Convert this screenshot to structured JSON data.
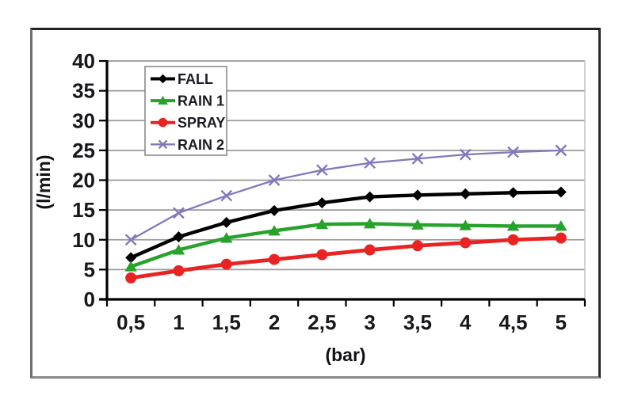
{
  "colors": {
    "gridline": "#9a9a9a",
    "axis": "#000000",
    "plot_right_edge": "#c6c6c6",
    "tick_text": "#18181c",
    "legend_border": "#8c8c8c",
    "legend_background": "#ffffff",
    "frame_border_dark": "#222222",
    "frame_border_light": "#8a8a8a"
  },
  "chart_data": {
    "type": "line",
    "title": "",
    "xlabel": "(bar)",
    "ylabel": "(l/min)",
    "x": [
      0.5,
      1,
      1.5,
      2,
      2.5,
      3,
      3.5,
      4,
      4.5,
      5
    ],
    "x_tick_labels": [
      "0,5",
      "1",
      "1,5",
      "2",
      "2,5",
      "3",
      "3,5",
      "4",
      "4,5",
      "5"
    ],
    "y_ticks": [
      0,
      5,
      10,
      15,
      20,
      25,
      30,
      35,
      40
    ],
    "ylim": [
      0,
      40
    ],
    "grid": true,
    "legend_position": "top-left-inside",
    "series": [
      {
        "name": "FALL",
        "color": "#000000",
        "marker": "diamond",
        "stroke_width": 4.4,
        "values": [
          7.0,
          10.5,
          12.9,
          14.9,
          16.2,
          17.2,
          17.5,
          17.7,
          17.9,
          18.0
        ]
      },
      {
        "name": "RAIN 1",
        "color": "#27a22b",
        "marker": "triangle",
        "stroke_width": 4.4,
        "values": [
          5.5,
          8.3,
          10.3,
          11.5,
          12.6,
          12.7,
          12.5,
          12.4,
          12.3,
          12.3
        ]
      },
      {
        "name": "SPRAY",
        "color": "#e92322",
        "marker": "circle",
        "stroke_width": 4.8,
        "values": [
          3.6,
          4.8,
          5.9,
          6.7,
          7.5,
          8.3,
          9.0,
          9.5,
          10.0,
          10.3
        ]
      },
      {
        "name": "RAIN 2",
        "color": "#8677bd",
        "marker": "x",
        "stroke_width": 2.3,
        "values": [
          10.0,
          14.5,
          17.4,
          20.0,
          21.7,
          22.9,
          23.6,
          24.3,
          24.7,
          25.0
        ]
      }
    ]
  }
}
